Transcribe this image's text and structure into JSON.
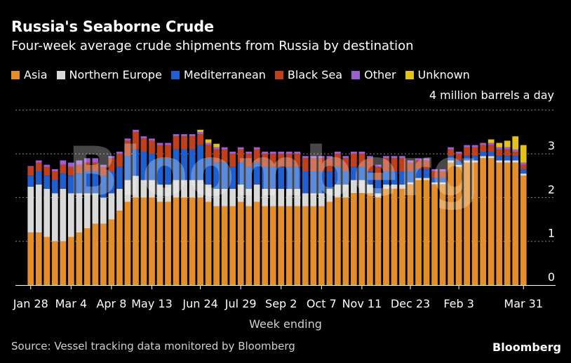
{
  "title": "Russia's Seaborne Crude",
  "subtitle": "Four-week average crude shipments from Russia by destination",
  "unit_label": "4 million barrels a day",
  "source": "Source: Vessel tracking data monitored by Bloomberg",
  "brand": "Bloomberg",
  "chart_data": {
    "type": "bar",
    "stacked": true,
    "xlabel": "Week ending",
    "ylabel": "",
    "ylim": [
      0,
      4
    ],
    "yticks": [
      0,
      1,
      2,
      3
    ],
    "grid": true,
    "legend_position": "top-left",
    "tick_labels": [
      {
        "index": 0,
        "label": "Jan 28"
      },
      {
        "index": 5,
        "label": "Mar 4"
      },
      {
        "index": 10,
        "label": "Apr 8"
      },
      {
        "index": 15,
        "label": "May 13"
      },
      {
        "index": 21,
        "label": "Jun 24"
      },
      {
        "index": 26,
        "label": "Jul 29"
      },
      {
        "index": 31,
        "label": "Sep 2"
      },
      {
        "index": 36,
        "label": "Oct 7"
      },
      {
        "index": 41,
        "label": "Nov 11"
      },
      {
        "index": 47,
        "label": "Dec 23"
      },
      {
        "index": 53,
        "label": "Feb 3"
      },
      {
        "index": 61,
        "label": "Mar 31"
      }
    ],
    "series": [
      {
        "name": "Asia",
        "color": "#e38e2b",
        "values": [
          1.2,
          1.2,
          1.1,
          1.0,
          1.0,
          1.1,
          1.2,
          1.3,
          1.4,
          1.4,
          1.5,
          1.7,
          1.9,
          2.0,
          2.0,
          2.0,
          1.9,
          1.9,
          2.0,
          2.0,
          2.0,
          2.0,
          1.9,
          1.8,
          1.8,
          1.8,
          1.9,
          1.8,
          1.9,
          1.8,
          1.8,
          1.8,
          1.8,
          1.8,
          1.8,
          1.8,
          1.8,
          1.9,
          2.0,
          2.0,
          2.1,
          2.1,
          2.1,
          2.0,
          2.2,
          2.2,
          2.2,
          2.3,
          2.4,
          2.4,
          2.3,
          2.3,
          2.8,
          2.7,
          2.8,
          2.8,
          2.9,
          2.9,
          2.8,
          2.8,
          2.8,
          2.5
        ]
      },
      {
        "name": "Northern Europe",
        "color": "#d9d9d9",
        "values": [
          1.05,
          1.1,
          1.1,
          1.1,
          1.2,
          1.0,
          0.9,
          0.8,
          0.7,
          0.6,
          0.6,
          0.5,
          0.5,
          0.5,
          0.4,
          0.4,
          0.4,
          0.4,
          0.4,
          0.4,
          0.4,
          0.4,
          0.4,
          0.4,
          0.4,
          0.4,
          0.4,
          0.4,
          0.4,
          0.4,
          0.4,
          0.4,
          0.4,
          0.4,
          0.3,
          0.3,
          0.3,
          0.3,
          0.3,
          0.3,
          0.3,
          0.3,
          0.2,
          0.1,
          0.1,
          0.1,
          0.1,
          0.05,
          0.05,
          0.05,
          0.05,
          0.05,
          0.05,
          0.05,
          0.05,
          0.05,
          0.05,
          0.05,
          0.05,
          0.05,
          0.05,
          0.05
        ]
      },
      {
        "name": "Mediterranean",
        "color": "#1f5fcf",
        "values": [
          0.25,
          0.3,
          0.3,
          0.3,
          0.35,
          0.4,
          0.45,
          0.5,
          0.5,
          0.5,
          0.5,
          0.5,
          0.55,
          0.6,
          0.65,
          0.6,
          0.6,
          0.6,
          0.7,
          0.7,
          0.7,
          0.8,
          0.6,
          0.6,
          0.6,
          0.5,
          0.5,
          0.5,
          0.5,
          0.5,
          0.5,
          0.5,
          0.5,
          0.5,
          0.5,
          0.5,
          0.5,
          0.4,
          0.4,
          0.3,
          0.3,
          0.3,
          0.3,
          0.3,
          0.3,
          0.3,
          0.3,
          0.25,
          0.2,
          0.2,
          0.1,
          0.1,
          0.1,
          0.1,
          0.1,
          0.1,
          0.1,
          0.1,
          0.1,
          0.1,
          0.1,
          0.1
        ]
      },
      {
        "name": "Black Sea",
        "color": "#c0401b",
        "values": [
          0.2,
          0.2,
          0.2,
          0.2,
          0.2,
          0.2,
          0.2,
          0.2,
          0.2,
          0.2,
          0.3,
          0.3,
          0.35,
          0.4,
          0.3,
          0.3,
          0.3,
          0.3,
          0.3,
          0.3,
          0.3,
          0.25,
          0.3,
          0.3,
          0.3,
          0.3,
          0.3,
          0.3,
          0.3,
          0.3,
          0.3,
          0.3,
          0.3,
          0.3,
          0.3,
          0.3,
          0.3,
          0.3,
          0.3,
          0.3,
          0.3,
          0.3,
          0.3,
          0.3,
          0.3,
          0.3,
          0.3,
          0.2,
          0.2,
          0.2,
          0.15,
          0.15,
          0.15,
          0.15,
          0.2,
          0.2,
          0.15,
          0.15,
          0.15,
          0.15,
          0.1,
          0.1
        ]
      },
      {
        "name": "Other",
        "color": "#9b5fd1",
        "values": [
          0.02,
          0.05,
          0.05,
          0.05,
          0.1,
          0.1,
          0.1,
          0.1,
          0.1,
          0.05,
          0.05,
          0.05,
          0.05,
          0.05,
          0.05,
          0.05,
          0.05,
          0.05,
          0.05,
          0.05,
          0.05,
          0.05,
          0.05,
          0.05,
          0.05,
          0.05,
          0.05,
          0.05,
          0.05,
          0.05,
          0.05,
          0.05,
          0.05,
          0.05,
          0.05,
          0.05,
          0.05,
          0.05,
          0.05,
          0.05,
          0.05,
          0.05,
          0.05,
          0.05,
          0.05,
          0.05,
          0.05,
          0.05,
          0.05,
          0.05,
          0.05,
          0.05,
          0.05,
          0.05,
          0.05,
          0.05,
          0.05,
          0.05,
          0.05,
          0.05,
          0.05,
          0.05
        ]
      },
      {
        "name": "Unknown",
        "color": "#e3c21a",
        "values": [
          0,
          0,
          0,
          0,
          0,
          0,
          0,
          0,
          0,
          0,
          0,
          0,
          0,
          0,
          0,
          0,
          0,
          0,
          0,
          0,
          0,
          0.05,
          0.08,
          0.08,
          0,
          0,
          0,
          0,
          0,
          0,
          0,
          0,
          0,
          0,
          0,
          0,
          0,
          0,
          0,
          0,
          0,
          0,
          0,
          0,
          0,
          0,
          0,
          0,
          0,
          0,
          0,
          0,
          0,
          0,
          0,
          0,
          0,
          0.08,
          0.1,
          0.15,
          0.3,
          0.4
        ]
      }
    ]
  }
}
